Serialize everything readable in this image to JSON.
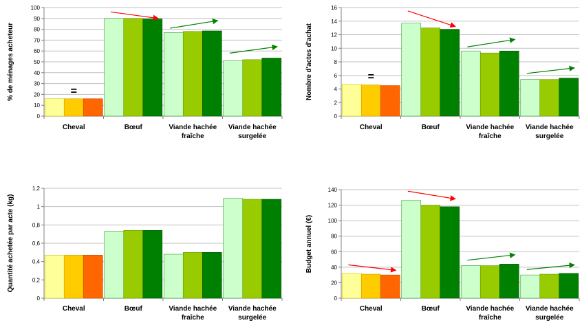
{
  "chart_data": [
    {
      "type": "bar",
      "ylabel": "% de ménages acheteur",
      "ylim": [
        0,
        100
      ],
      "yticks": [
        "0",
        "10",
        "20",
        "30",
        "40",
        "50",
        "60",
        "70",
        "80",
        "90",
        "100"
      ],
      "grid": true,
      "categories": [
        "Cheval",
        "Bœuf",
        "Viande hachée fraîche",
        "Viande hachée surgelée"
      ],
      "category_lines": [
        [
          "Cheval"
        ],
        [
          "Bœuf"
        ],
        [
          "Viande hachée",
          "fraîche"
        ],
        [
          "Viande hachée",
          "surgelée"
        ]
      ],
      "values": [
        [
          16,
          16,
          16
        ],
        [
          90,
          90,
          89.5
        ],
        [
          77,
          78,
          78.5
        ],
        [
          51,
          52,
          53.5
        ]
      ],
      "annotations": [
        {
          "category": 0,
          "type": "equal",
          "text": "="
        },
        {
          "category": 1,
          "type": "arrow",
          "trend": "down",
          "color": "#ff0000",
          "from": 96,
          "to": 90
        },
        {
          "category": 2,
          "type": "arrow",
          "trend": "up",
          "color": "#008000",
          "from": 81,
          "to": 88
        },
        {
          "category": 3,
          "type": "arrow",
          "trend": "up",
          "color": "#008000",
          "from": 58,
          "to": 64
        }
      ]
    },
    {
      "type": "bar",
      "ylabel": "Nombre d'actes d'achat",
      "ylim": [
        0,
        16
      ],
      "yticks": [
        "0",
        "2",
        "4",
        "6",
        "8",
        "10",
        "12",
        "14",
        "16"
      ],
      "grid": true,
      "categories": [
        "Cheval",
        "Bœuf",
        "Viande hachée fraîche",
        "Viande hachée surgelée"
      ],
      "category_lines": [
        [
          "Cheval"
        ],
        [
          "Bœuf"
        ],
        [
          "Viande hachée",
          "fraîche"
        ],
        [
          "Viande hachée",
          "surgelée"
        ]
      ],
      "values": [
        [
          4.7,
          4.6,
          4.5
        ],
        [
          13.7,
          13.0,
          12.8
        ],
        [
          9.6,
          9.3,
          9.6
        ],
        [
          5.4,
          5.4,
          5.6
        ]
      ],
      "annotations": [
        {
          "category": 0,
          "type": "equal",
          "text": "="
        },
        {
          "category": 1,
          "type": "arrow",
          "trend": "down",
          "color": "#ff0000",
          "from": 15.5,
          "to": 13.2
        },
        {
          "category": 2,
          "type": "arrow",
          "trend": "up",
          "color": "#008000",
          "from": 10.2,
          "to": 11.3
        },
        {
          "category": 3,
          "type": "arrow",
          "trend": "up",
          "color": "#008000",
          "from": 6.3,
          "to": 7.1
        }
      ]
    },
    {
      "type": "bar",
      "ylabel": "Quantité achetée par acte (kg)",
      "ylim": [
        0,
        1.2
      ],
      "yticks": [
        "0",
        "0,2",
        "0,4",
        "0,6",
        "0,8",
        "1",
        "1,2"
      ],
      "grid": true,
      "categories": [
        "Cheval",
        "Bœuf",
        "Viande hachée fraîche",
        "Viande hachée surgelée"
      ],
      "category_lines": [
        [
          "Cheval"
        ],
        [
          "Bœuf"
        ],
        [
          "Viande hachée",
          "fraîche"
        ],
        [
          "Viande hachée",
          "surgelée"
        ]
      ],
      "values": [
        [
          0.47,
          0.47,
          0.47
        ],
        [
          0.73,
          0.74,
          0.74
        ],
        [
          0.48,
          0.5,
          0.5
        ],
        [
          1.09,
          1.08,
          1.08
        ]
      ],
      "annotations": []
    },
    {
      "type": "bar",
      "ylabel": "Budget annuel (€)",
      "ylim": [
        0,
        140
      ],
      "yticks": [
        "0",
        "20",
        "40",
        "60",
        "80",
        "100",
        "120",
        "140"
      ],
      "grid": true,
      "categories": [
        "Cheval",
        "Bœuf",
        "Viande hachée fraîche",
        "Viande hachée surgelée"
      ],
      "category_lines": [
        [
          "Cheval"
        ],
        [
          "Bœuf"
        ],
        [
          "Viande hachée",
          "fraîche"
        ],
        [
          "Viande hachée",
          "surgelée"
        ]
      ],
      "values": [
        [
          32,
          31,
          30
        ],
        [
          126,
          120,
          118
        ],
        [
          42,
          42,
          44
        ],
        [
          30,
          31,
          32
        ]
      ],
      "annotations": [
        {
          "category": 0,
          "type": "arrow",
          "trend": "down",
          "color": "#ff0000",
          "from": 43,
          "to": 36
        },
        {
          "category": 1,
          "type": "arrow",
          "trend": "down",
          "color": "#ff0000",
          "from": 138,
          "to": 128
        },
        {
          "category": 2,
          "type": "arrow",
          "trend": "up",
          "color": "#008000",
          "from": 49,
          "to": 56
        },
        {
          "category": 3,
          "type": "arrow",
          "trend": "up",
          "color": "#008000",
          "from": 37,
          "to": 43
        }
      ]
    }
  ],
  "colors": {
    "cheval_bars": [
      "#ffff99",
      "#ffcc00",
      "#ff6600"
    ],
    "other_bars": [
      "#ccffcc",
      "#99cc00",
      "#008000"
    ],
    "bar_stroke": [
      "#c8c800",
      "#d0a000",
      "#cc4400"
    ],
    "other_stroke": [
      "#339933",
      "#669900",
      "#005500"
    ],
    "gridline": "#c0c0c0",
    "axis": "#808080"
  }
}
